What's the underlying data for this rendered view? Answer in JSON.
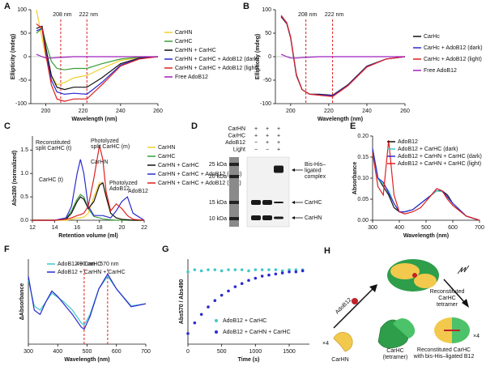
{
  "chart_data": [
    {
      "panel": "A",
      "type": "line",
      "xlabel": "Wavelength (nm)",
      "ylabel": "Ellipticity (mdeg)",
      "xlim": [
        192,
        260
      ],
      "ylim": [
        -100,
        100
      ],
      "xticks": [
        200,
        220,
        240,
        260
      ],
      "yticks": [
        -100,
        -50,
        0,
        50,
        100
      ],
      "zero_line": true,
      "x": [
        195,
        198,
        200,
        203,
        206,
        210,
        215,
        222,
        230,
        240,
        250,
        260
      ],
      "series": [
        {
          "name": "CarHN",
          "color": "#f2cf2e",
          "values": [
            100,
            40,
            0,
            -40,
            -60,
            -55,
            -45,
            -40,
            -25,
            -8,
            -2,
            0
          ]
        },
        {
          "name": "CarHC",
          "color": "#3a9e3a",
          "values": [
            50,
            60,
            30,
            -10,
            -25,
            -28,
            -25,
            -25,
            -15,
            -5,
            -1,
            0
          ]
        },
        {
          "name": "CarHN + CarHC",
          "color": "#111111",
          "values": [
            60,
            65,
            20,
            -40,
            -65,
            -70,
            -65,
            -65,
            -45,
            -15,
            -3,
            0
          ]
        },
        {
          "name": "CarHN + CarHC + AdoB12 (dark)",
          "color": "#2a2ad0",
          "values": [
            55,
            60,
            10,
            -50,
            -75,
            -80,
            -78,
            -80,
            -55,
            -18,
            -4,
            0
          ]
        },
        {
          "name": "CarHN + CarHC + AdoB12 (light)",
          "color": "#e02020",
          "values": [
            70,
            60,
            5,
            -60,
            -90,
            -95,
            -90,
            -90,
            -60,
            -20,
            -5,
            0
          ]
        },
        {
          "name": "Free AdoB12",
          "color": "#a020c0",
          "values": [
            5,
            0,
            -3,
            -3,
            -2,
            -1,
            0,
            0,
            0,
            0,
            0,
            0
          ]
        }
      ],
      "annotations": [
        {
          "x": 208,
          "label": "208 nm"
        },
        {
          "x": 222,
          "label": "222 nm"
        }
      ]
    },
    {
      "panel": "B",
      "type": "line",
      "xlabel": "Wavelength (nm)",
      "ylabel": "Ellipticity (mdeg)",
      "xlim": [
        192,
        260
      ],
      "ylim": [
        -100,
        100
      ],
      "xticks": [
        200,
        220,
        240,
        260
      ],
      "yticks": [
        -100,
        -50,
        0,
        50,
        100
      ],
      "zero_line": true,
      "x": [
        195,
        198,
        200,
        203,
        206,
        210,
        215,
        222,
        230,
        240,
        250,
        260
      ],
      "series": [
        {
          "name": "CarHc",
          "color": "#111111",
          "values": [
            85,
            70,
            40,
            -40,
            -70,
            -80,
            -80,
            -82,
            -60,
            -20,
            -5,
            0
          ]
        },
        {
          "name": "CarHc + AdoB12 (dark)",
          "color": "#2a2ad0",
          "values": [
            86,
            71,
            41,
            -39,
            -70,
            -80,
            -81,
            -83,
            -61,
            -21,
            -5,
            0
          ]
        },
        {
          "name": "CarHc + AdoB12 (light)",
          "color": "#e02020",
          "values": [
            88,
            72,
            42,
            -38,
            -70,
            -80,
            -82,
            -85,
            -62,
            -22,
            -5,
            0
          ]
        },
        {
          "name": "Free AdoB12",
          "color": "#a020c0",
          "values": [
            5,
            0,
            -3,
            -3,
            -2,
            -1,
            0,
            0,
            0,
            0,
            0,
            0
          ]
        }
      ],
      "annotations": [
        {
          "x": 208,
          "label": "208 nm"
        },
        {
          "x": 222,
          "label": "222 nm"
        }
      ]
    },
    {
      "panel": "C",
      "type": "line",
      "xlabel": "Retention volume (ml)",
      "ylabel": "Abs280 (normalized)",
      "xlim": [
        12,
        22
      ],
      "ylim": [
        0,
        1.8
      ],
      "xticks": [
        12,
        14,
        16,
        18,
        20,
        22
      ],
      "yticks": [
        {
          "value": 0,
          "label": "0.0"
        },
        0.5,
        {
          "value": 1,
          "label": "1.0"
        },
        1.5
      ],
      "x": [
        12,
        14,
        15,
        15.5,
        16,
        16.3,
        16.6,
        17,
        17.5,
        18,
        18.3,
        18.6,
        19,
        19.5,
        20,
        20.5,
        21,
        22
      ],
      "series": [
        {
          "name": "CarHN",
          "color": "#f2cf2e",
          "values": [
            0,
            0,
            0,
            0.02,
            0.05,
            0.05,
            0.07,
            0.15,
            0.5,
            0.8,
            0.8,
            0.5,
            0.15,
            0.05,
            0.02,
            0,
            0,
            0
          ]
        },
        {
          "name": "CarHC",
          "color": "#3a9e3a",
          "values": [
            0,
            0,
            0.03,
            0.2,
            0.45,
            0.55,
            0.5,
            0.25,
            0.08,
            0.05,
            0.03,
            0.02,
            0.01,
            0,
            0,
            0,
            0,
            0
          ]
        },
        {
          "name": "CarHN + CarHC",
          "color": "#111111",
          "values": [
            0,
            0,
            0.02,
            0.15,
            0.4,
            0.5,
            0.45,
            0.25,
            0.4,
            0.75,
            0.8,
            0.5,
            0.15,
            0.05,
            0.02,
            0.01,
            0,
            0
          ]
        },
        {
          "name": "CarHN + CarHC + AdoB12 (dark)",
          "color": "#2a2ad0",
          "values": [
            0,
            0,
            0.05,
            0.3,
            1.0,
            1.3,
            1.0,
            0.3,
            0.1,
            0.1,
            0.1,
            0.08,
            0.05,
            0.2,
            0.4,
            0.5,
            0.15,
            0
          ]
        },
        {
          "name": "CarHN + CarHC + AdoB12 (light)",
          "color": "#e02020",
          "values": [
            0,
            0,
            0.02,
            0.05,
            0.1,
            0.12,
            0.15,
            0.3,
            0.9,
            1.6,
            1.3,
            0.6,
            0.2,
            0.35,
            0.25,
            0.1,
            0.02,
            0
          ]
        }
      ],
      "peak_labels": [
        [
          "Reconstituted",
          "split CarHC (t)"
        ],
        [
          "Photolyzed",
          "split CarHC (m)"
        ],
        [
          "CarHC (t)"
        ],
        [
          "CarHN"
        ],
        [
          "Photolyzed",
          "AdoB12"
        ],
        [
          "AdoB12"
        ]
      ]
    },
    {
      "panel": "E",
      "type": "line",
      "xlabel": "Wavelength (nm)",
      "ylabel": "Absorbance",
      "xlim": [
        300,
        700
      ],
      "ylim": [
        0,
        0.2
      ],
      "xticks": [
        300,
        400,
        500,
        600,
        700
      ],
      "yticks": [
        {
          "value": 0,
          "label": "0.00"
        },
        0.05,
        {
          "value": 0.1,
          "label": "0.10"
        },
        0.15,
        {
          "value": 0.2,
          "label": "0.20"
        }
      ],
      "x": [
        300,
        320,
        340,
        360,
        380,
        400,
        420,
        450,
        480,
        500,
        520,
        540,
        560,
        580,
        600,
        650,
        700
      ],
      "series": [
        {
          "name": "AdoB12",
          "color": "#111111",
          "values": [
            0.17,
            0.1,
            0.08,
            0.06,
            0.03,
            0.02,
            0.02,
            0.025,
            0.04,
            0.05,
            0.06,
            0.07,
            0.07,
            0.06,
            0.04,
            0.01,
            0
          ]
        },
        {
          "name": "AdoB12 + CarHC (dark)",
          "color": "#40c8c8",
          "values": [
            0.17,
            0.1,
            0.085,
            0.07,
            0.04,
            0.02,
            0.02,
            0.025,
            0.04,
            0.05,
            0.06,
            0.07,
            0.068,
            0.055,
            0.04,
            0.01,
            0
          ]
        },
        {
          "name": "AdoB12 + CarHN + CarHC (dark)",
          "color": "#2a2ad0",
          "values": [
            0.17,
            0.1,
            0.09,
            0.065,
            0.04,
            0.02,
            0.02,
            0.025,
            0.04,
            0.05,
            0.06,
            0.075,
            0.07,
            0.055,
            0.04,
            0.01,
            0
          ]
        },
        {
          "name": "AdoB12 + CarHN + CarHC (light)",
          "color": "#e02020",
          "values": [
            0.16,
            0.08,
            0.06,
            0.19,
            0.06,
            0.02,
            0.015,
            0.02,
            0.03,
            0.045,
            0.06,
            0.075,
            0.07,
            0.05,
            0.035,
            0.01,
            0
          ]
        }
      ]
    },
    {
      "panel": "F",
      "type": "line",
      "xlabel": "Wavelength (nm)",
      "ylabel": "ΔAbsorbance",
      "xlim": [
        300,
        700
      ],
      "ylim": [
        -1,
        1
      ],
      "xticks": [
        300,
        400,
        500,
        600,
        700
      ],
      "x": [
        300,
        320,
        340,
        360,
        380,
        400,
        420,
        450,
        480,
        490,
        510,
        540,
        570,
        600,
        650,
        700
      ],
      "series": [
        {
          "name": "AdoB12 + CarHC",
          "color": "#40c8c8",
          "values": [
            0.5,
            -0.1,
            -0.2,
            0,
            0.2,
            0.1,
            0,
            -0.2,
            -0.5,
            -0.55,
            -0.3,
            0.3,
            0.6,
            0.3,
            -0.1,
            -0.05
          ]
        },
        {
          "name": "AdoB12 + CarHN + CarHC",
          "color": "#2a2ad0",
          "values": [
            0.6,
            -0.2,
            -0.3,
            0,
            0.25,
            0.12,
            -0.05,
            -0.3,
            -0.6,
            -0.65,
            -0.35,
            0.3,
            0.65,
            0.3,
            -0.12,
            -0.05
          ]
        }
      ],
      "annotations": [
        {
          "x": 490,
          "label": "490 nm"
        },
        {
          "x": 570,
          "label": "570 nm"
        }
      ]
    },
    {
      "panel": "G",
      "type": "scatter",
      "xlabel": "Time (s)",
      "ylabel": "Abs570 / Abs490",
      "xlim": [
        0,
        1800
      ],
      "ylim": [
        0.2,
        1
      ],
      "xticks": [
        0,
        500,
        1000,
        1500
      ],
      "x": [
        0,
        100,
        200,
        300,
        400,
        500,
        600,
        700,
        800,
        900,
        1000,
        1100,
        1200,
        1300,
        1400,
        1500,
        1600,
        1700
      ],
      "series": [
        {
          "name": "AdoB12 + CarHC",
          "color": "#40c8c8",
          "values": [
            0.88,
            0.9,
            0.89,
            0.9,
            0.9,
            0.89,
            0.9,
            0.9,
            0.9,
            0.89,
            0.9,
            0.9,
            0.9,
            0.9,
            0.89,
            0.9,
            0.9,
            0.9
          ]
        },
        {
          "name": "AdoB12 + CarHN + CarHC",
          "color": "#2a2ad0",
          "values": [
            0.3,
            0.4,
            0.48,
            0.55,
            0.61,
            0.66,
            0.7,
            0.74,
            0.77,
            0.8,
            0.82,
            0.84,
            0.85,
            0.86,
            0.87,
            0.88,
            0.88,
            0.89
          ]
        }
      ]
    }
  ],
  "gel": {
    "panel": "D",
    "rows": [
      {
        "label": "CarHN",
        "lanes": [
          "+",
          "+",
          "+"
        ]
      },
      {
        "label": "CarHC",
        "lanes": [
          "+",
          "+",
          "+"
        ]
      },
      {
        "label": "AdoB12",
        "lanes": [
          "−",
          "+",
          "+"
        ]
      },
      {
        "label": "Light",
        "lanes": [
          "−",
          "−",
          "+"
        ]
      }
    ],
    "markers": [
      "25 kDa",
      "20 kDa",
      "15 kDa",
      "10 kDa"
    ],
    "bands": [
      [
        "Bis-His–",
        "ligated",
        "complex"
      ],
      [
        "CarHC"
      ],
      [
        "CarHN"
      ]
    ]
  },
  "diagram": {
    "panel": "H",
    "adob12": "AdoB12",
    "count_left": "×4",
    "carhn": "CarHN",
    "carhc": [
      "CarHC",
      "(tetramer)"
    ],
    "tetramer": [
      "Reconstituted",
      "CarHC",
      "tetramer"
    ],
    "count_right": "×4",
    "final": [
      "Reconstituted CarHC",
      "with bis-His–ligated B12"
    ]
  }
}
